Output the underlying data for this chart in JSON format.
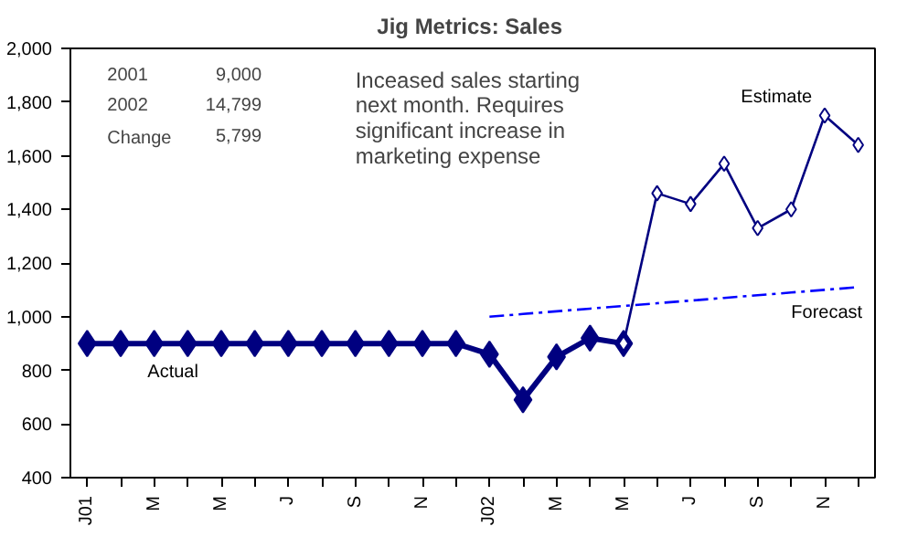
{
  "chart_data": {
    "type": "line",
    "title": "Jig Metrics:  Sales",
    "categories": [
      "J01",
      null,
      "M",
      null,
      "M",
      null,
      "J",
      null,
      "S",
      null,
      "N",
      null,
      "J02",
      null,
      "M",
      null,
      "M",
      null,
      "J",
      null,
      "S",
      null,
      "N",
      null
    ],
    "series": [
      {
        "name": "Actual",
        "color": "#000080",
        "marker": "diamond",
        "line_style": "solid",
        "values": [
          900,
          900,
          900,
          900,
          900,
          900,
          900,
          900,
          900,
          900,
          900,
          900,
          860,
          690,
          850,
          920,
          900,
          null,
          null,
          null,
          null,
          null,
          null,
          null
        ]
      },
      {
        "name": "Estimate",
        "color": "#000080",
        "marker": "diamond",
        "line_style": "solid",
        "values": [
          null,
          null,
          null,
          null,
          null,
          null,
          null,
          null,
          null,
          null,
          null,
          null,
          null,
          null,
          null,
          null,
          900,
          1460,
          1420,
          1570,
          1330,
          1400,
          1750,
          1640
        ]
      },
      {
        "name": "Forecast",
        "color": "#0000ff",
        "marker": "none",
        "line_style": "dashed",
        "values": [
          null,
          null,
          null,
          null,
          null,
          null,
          null,
          null,
          null,
          null,
          null,
          null,
          1000,
          1010,
          1020,
          1030,
          1040,
          1050,
          1060,
          1070,
          1080,
          1090,
          1100,
          1110
        ]
      }
    ],
    "ylim": [
      400,
      2000
    ],
    "yticks": [
      400,
      600,
      800,
      {
        "value": 1000,
        "label": "1,000"
      },
      {
        "value": 1200,
        "label": "1,200"
      },
      {
        "value": 1400,
        "label": "1,400"
      },
      {
        "value": 1600,
        "label": "1,600"
      },
      {
        "value": 1800,
        "label": "1,800"
      },
      {
        "value": 2000,
        "label": "2,000"
      }
    ],
    "grid": false,
    "annotations": [
      "2001",
      "9,000",
      "2002",
      "14,799",
      "Change",
      "5,799",
      "Inceased sales starting next month.  Requires significant increase in marketing expense"
    ]
  }
}
